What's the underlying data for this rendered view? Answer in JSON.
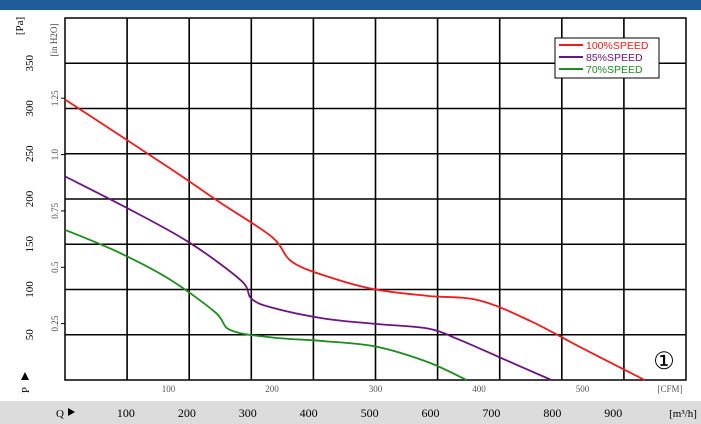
{
  "header": {
    "color": "#1f5c99"
  },
  "axes": {
    "pa_unit": "[Pa]",
    "inh2o_unit": "[in H2O]",
    "cfm_unit": "[CFM]",
    "m3h_unit": "[m³/h]",
    "p_label": "P",
    "q_label": "Q",
    "pa_ticks": [
      "50",
      "100",
      "150",
      "200",
      "250",
      "300",
      "350"
    ],
    "inh2o_ticks": [
      "0.25",
      "0.5",
      "0.75",
      "1.0",
      "1.25"
    ],
    "cfm_ticks": [
      "100",
      "200",
      "300",
      "400",
      "500"
    ],
    "m3h_ticks": [
      "100",
      "200",
      "300",
      "400",
      "500",
      "600",
      "700",
      "800",
      "900"
    ]
  },
  "badge": "①",
  "chart_data": {
    "type": "line",
    "xlabel": "Q",
    "ylabel": "P",
    "x_unit": "CFM",
    "y_unit": "Pa",
    "xlim": [
      0,
      600
    ],
    "ylim": [
      0,
      400
    ],
    "grid": true,
    "legend_position": "top-right",
    "series": [
      {
        "name": "100%SPEED",
        "color": "#ee1c1c",
        "points": [
          [
            0,
            310
          ],
          [
            100,
            235
          ],
          [
            150,
            196
          ],
          [
            200,
            158
          ],
          [
            220,
            130
          ],
          [
            260,
            112
          ],
          [
            300,
            100
          ],
          [
            350,
            93
          ],
          [
            400,
            88
          ],
          [
            450,
            65
          ],
          [
            500,
            35
          ],
          [
            560,
            0
          ]
        ]
      },
      {
        "name": "85%SPEED",
        "color": "#6a1580",
        "points": [
          [
            0,
            225
          ],
          [
            60,
            190
          ],
          [
            120,
            152
          ],
          [
            170,
            110
          ],
          [
            180,
            90
          ],
          [
            200,
            80
          ],
          [
            250,
            68
          ],
          [
            300,
            62
          ],
          [
            350,
            57
          ],
          [
            380,
            45
          ],
          [
            420,
            25
          ],
          [
            470,
            0
          ]
        ]
      },
      {
        "name": "70%SPEED",
        "color": "#1e8c1e",
        "points": [
          [
            0,
            166
          ],
          [
            50,
            142
          ],
          [
            100,
            112
          ],
          [
            145,
            75
          ],
          [
            160,
            55
          ],
          [
            200,
            47
          ],
          [
            250,
            43
          ],
          [
            300,
            37
          ],
          [
            350,
            20
          ],
          [
            388,
            0
          ]
        ]
      }
    ]
  }
}
